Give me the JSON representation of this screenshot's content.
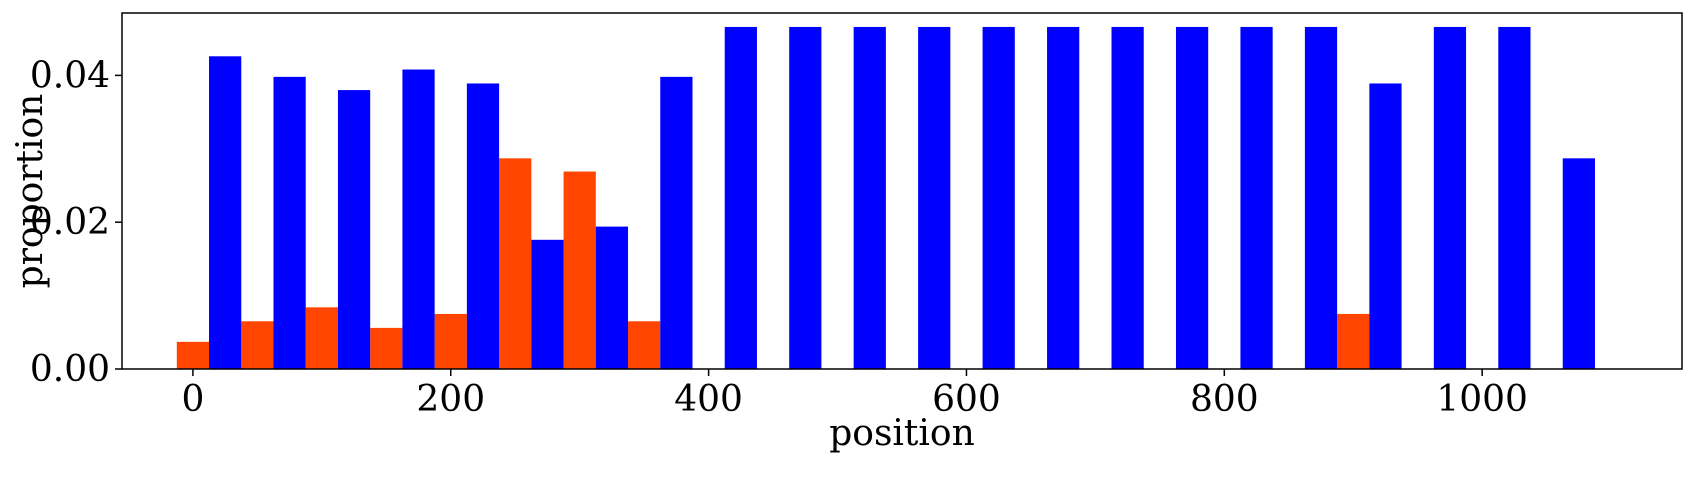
{
  "chart_data": {
    "type": "bar",
    "xlabel": "position",
    "ylabel": "proportion",
    "xlim": [
      -55,
      1155
    ],
    "ylim": [
      0,
      0.0485
    ],
    "bar_width": 25,
    "x_ticks": [
      0,
      200,
      400,
      600,
      800,
      1000
    ],
    "x_tick_labels": [
      "0",
      "200",
      "400",
      "600",
      "800",
      "1000"
    ],
    "y_ticks": [
      0.0,
      0.02,
      0.04
    ],
    "y_tick_labels": [
      "0.00",
      "0.02",
      "0.04"
    ],
    "grid": false,
    "series": [
      {
        "color": "#ff4500",
        "x": [
          0,
          50,
          100,
          150,
          200,
          250,
          300,
          350,
          900
        ],
        "values": [
          0.0037,
          0.0065,
          0.0084,
          0.0056,
          0.0075,
          0.0287,
          0.0269,
          0.0065,
          0.0075
        ]
      },
      {
        "color": "#0000ff",
        "x": [
          25,
          75,
          125,
          175,
          225,
          275,
          325,
          375,
          425,
          475,
          525,
          575,
          625,
          675,
          725,
          775,
          825,
          875,
          925,
          975,
          1025,
          1075
        ],
        "values": [
          0.0426,
          0.0398,
          0.038,
          0.0408,
          0.0389,
          0.0176,
          0.0194,
          0.0398,
          0.0466,
          0.0466,
          0.0466,
          0.0466,
          0.0466,
          0.0466,
          0.0466,
          0.0466,
          0.0466,
          0.0466,
          0.0389,
          0.0466,
          0.0466,
          0.0287
        ]
      }
    ]
  }
}
